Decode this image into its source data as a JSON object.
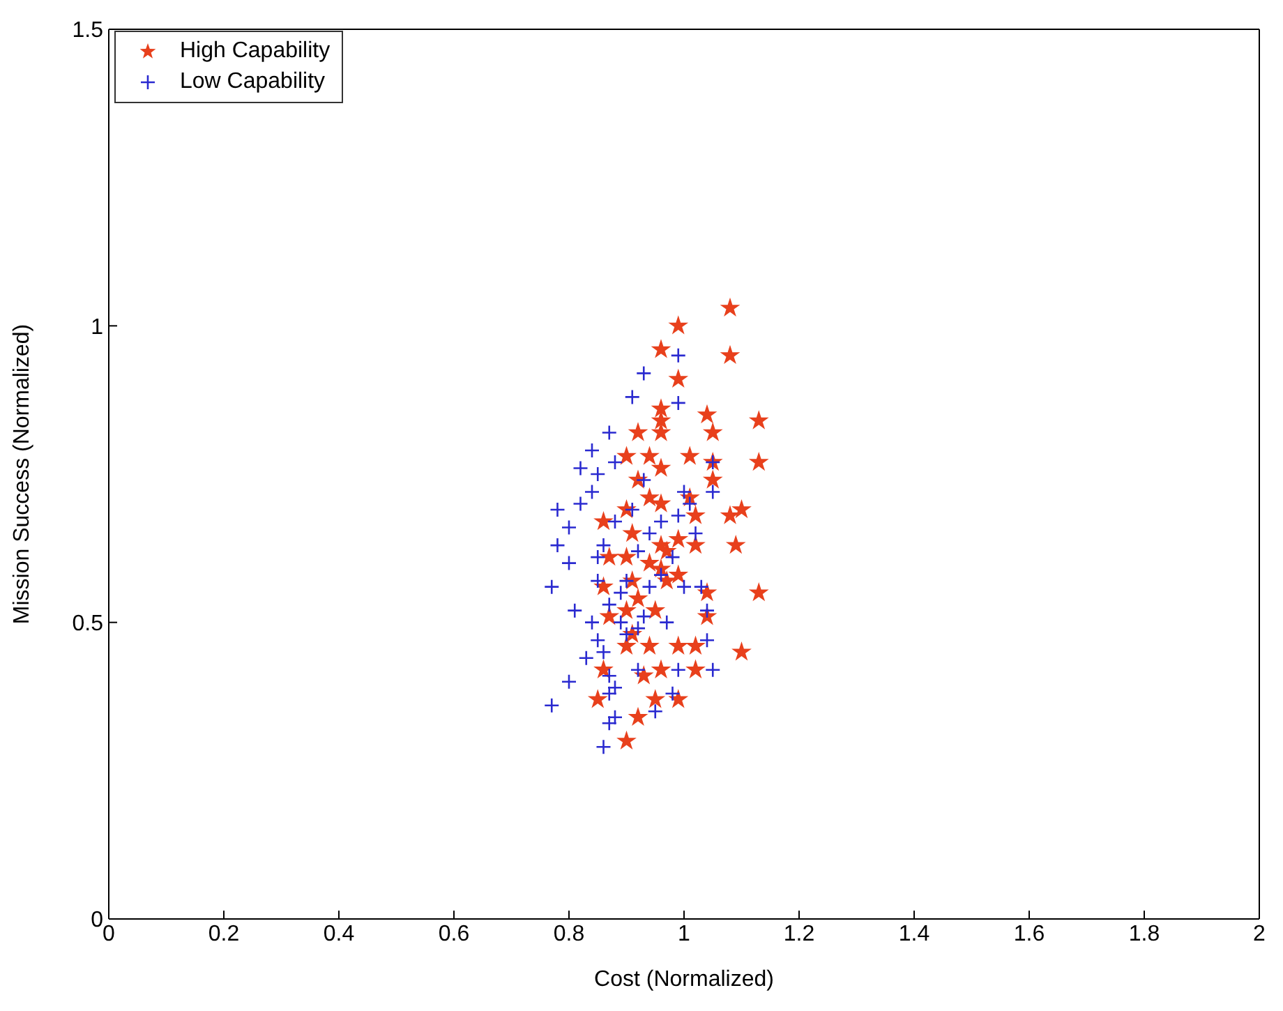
{
  "chart_data": {
    "type": "scatter",
    "xlabel": "Cost (Normalized)",
    "ylabel": "Mission Success (Normalized)",
    "xlim": [
      0,
      2
    ],
    "xticks": [
      0,
      0.2,
      0.4,
      0.6,
      0.8,
      1,
      1.2,
      1.4,
      1.6,
      1.8,
      2
    ],
    "ylim": [
      0,
      1.5
    ],
    "yticks": [
      0,
      0.5,
      1,
      1.5
    ],
    "grid": false,
    "legend": "top left",
    "series": [
      {
        "name": "High Capability",
        "color": "#e8401c",
        "marker": "star",
        "x": [
          1.08,
          0.99,
          1.08,
          0.96,
          0.99,
          0.96,
          0.96,
          1.04,
          1.13,
          1.05,
          0.92,
          0.96,
          0.9,
          0.94,
          1.01,
          1.05,
          1.13,
          0.96,
          0.92,
          1.05,
          0.94,
          1.01,
          1.1,
          1.08,
          0.86,
          0.9,
          0.96,
          1.02,
          0.91,
          0.96,
          0.99,
          0.9,
          0.87,
          0.94,
          0.97,
          1.02,
          1.09,
          0.96,
          0.97,
          1.04,
          1.13,
          0.92,
          0.99,
          0.9,
          0.95,
          0.87,
          1.04,
          0.91,
          0.9,
          0.99,
          1.02,
          1.1,
          0.94,
          0.86,
          0.96,
          1.02,
          0.93,
          0.99,
          0.95,
          0.85,
          0.92,
          0.9,
          0.86,
          0.91
        ],
        "values": [
          1.03,
          1.0,
          0.95,
          0.96,
          0.91,
          0.86,
          0.84,
          0.85,
          0.84,
          0.82,
          0.82,
          0.82,
          0.78,
          0.78,
          0.78,
          0.77,
          0.77,
          0.76,
          0.74,
          0.74,
          0.71,
          0.71,
          0.69,
          0.68,
          0.67,
          0.69,
          0.7,
          0.68,
          0.65,
          0.63,
          0.64,
          0.61,
          0.61,
          0.6,
          0.62,
          0.63,
          0.63,
          0.59,
          0.57,
          0.55,
          0.55,
          0.54,
          0.58,
          0.52,
          0.52,
          0.51,
          0.51,
          0.48,
          0.46,
          0.46,
          0.46,
          0.45,
          0.46,
          0.42,
          0.42,
          0.42,
          0.41,
          0.37,
          0.37,
          0.37,
          0.34,
          0.3,
          0.56,
          0.57
        ]
      },
      {
        "name": "Low Capability",
        "color": "#2a2ad0",
        "marker": "cross",
        "x": [
          0.93,
          0.91,
          0.99,
          0.99,
          0.87,
          0.84,
          0.82,
          0.85,
          0.88,
          0.78,
          0.8,
          0.78,
          0.8,
          0.77,
          0.8,
          0.77,
          0.84,
          0.85,
          0.83,
          0.86,
          0.87,
          0.87,
          0.88,
          0.87,
          0.86,
          0.87,
          0.89,
          0.9,
          0.89,
          0.92,
          0.92,
          0.93,
          0.94,
          0.96,
          0.97,
          0.98,
          1.0,
          1.02,
          1.03,
          1.04,
          1.04,
          1.05,
          1.05,
          1.0,
          0.96,
          0.93,
          0.91,
          0.88,
          0.86,
          0.85,
          0.92,
          0.94,
          0.99,
          1.01,
          0.95,
          0.98,
          0.99,
          1.05,
          0.84,
          0.88,
          0.9,
          0.85,
          0.82,
          0.81
        ],
        "values": [
          0.92,
          0.88,
          0.95,
          0.87,
          0.82,
          0.79,
          0.76,
          0.75,
          0.77,
          0.69,
          0.66,
          0.63,
          0.6,
          0.56,
          0.4,
          0.36,
          0.5,
          0.47,
          0.44,
          0.45,
          0.41,
          0.38,
          0.34,
          0.33,
          0.29,
          0.53,
          0.55,
          0.57,
          0.5,
          0.49,
          0.42,
          0.51,
          0.56,
          0.58,
          0.5,
          0.61,
          0.56,
          0.65,
          0.56,
          0.47,
          0.52,
          0.72,
          0.77,
          0.72,
          0.67,
          0.74,
          0.69,
          0.67,
          0.63,
          0.61,
          0.62,
          0.65,
          0.68,
          0.7,
          0.35,
          0.38,
          0.42,
          0.42,
          0.72,
          0.39,
          0.48,
          0.57,
          0.7,
          0.52
        ]
      }
    ]
  }
}
